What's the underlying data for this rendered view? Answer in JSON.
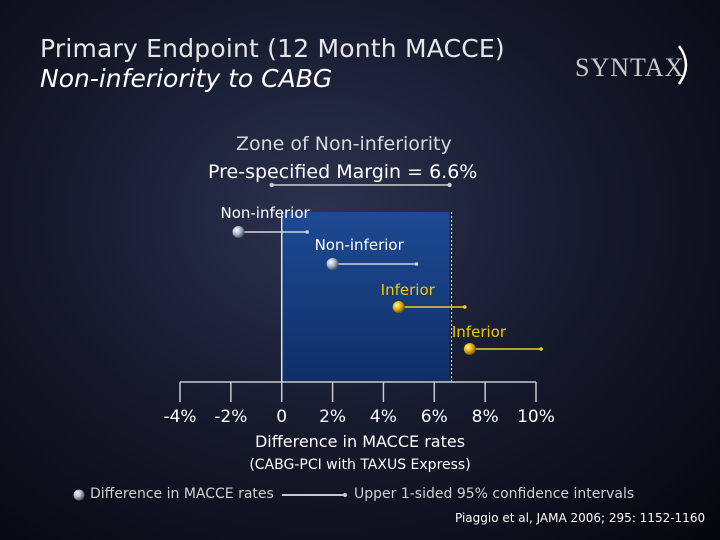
{
  "header": {
    "title": "Primary Endpoint (12 Month MACCE)",
    "subtitle": "Non-inferiority to CABG",
    "logo_text": "SYNTAX"
  },
  "zone": {
    "title": "Zone of Non-inferiority",
    "margin_label": "Pre-specified Margin = 6.6%"
  },
  "legend": {
    "point_label": "Difference in MACCE rates",
    "line_label": "Upper 1-sided 95% confidence intervals"
  },
  "citation": "Piaggio et al, JAMA 2006; 295: 1152-1160",
  "chart_data": {
    "type": "scatter",
    "xlabel": "Difference in MACCE rates",
    "xlabel_sub": "(CABG-PCI with TAXUS Express)",
    "xlim": [
      -4,
      10
    ],
    "x_ticks": [
      -4,
      -2,
      0,
      2,
      4,
      6,
      8,
      10
    ],
    "tick_labels": [
      "-4%",
      "-2%",
      "0",
      "2%",
      "4%",
      "6%",
      "8%",
      "10%"
    ],
    "margin": {
      "from": 0,
      "to": 6.6
    },
    "points": [
      {
        "label": "Non-inferior",
        "estimate": -1.7,
        "upper": 1.0,
        "color": "#aab4c8"
      },
      {
        "label": "Non-inferior",
        "estimate": 2.0,
        "upper": 5.3,
        "color": "#aab4c8"
      },
      {
        "label": "Inferior",
        "estimate": 4.6,
        "upper": 7.2,
        "color": "#e0b400"
      },
      {
        "label": "Inferior",
        "estimate": 7.4,
        "upper": 10.2,
        "color": "#e0b400"
      }
    ],
    "colors": {
      "zone": "#153a78",
      "noninferior_label": "#ffffff",
      "inferior_label": "#f0c800"
    }
  }
}
